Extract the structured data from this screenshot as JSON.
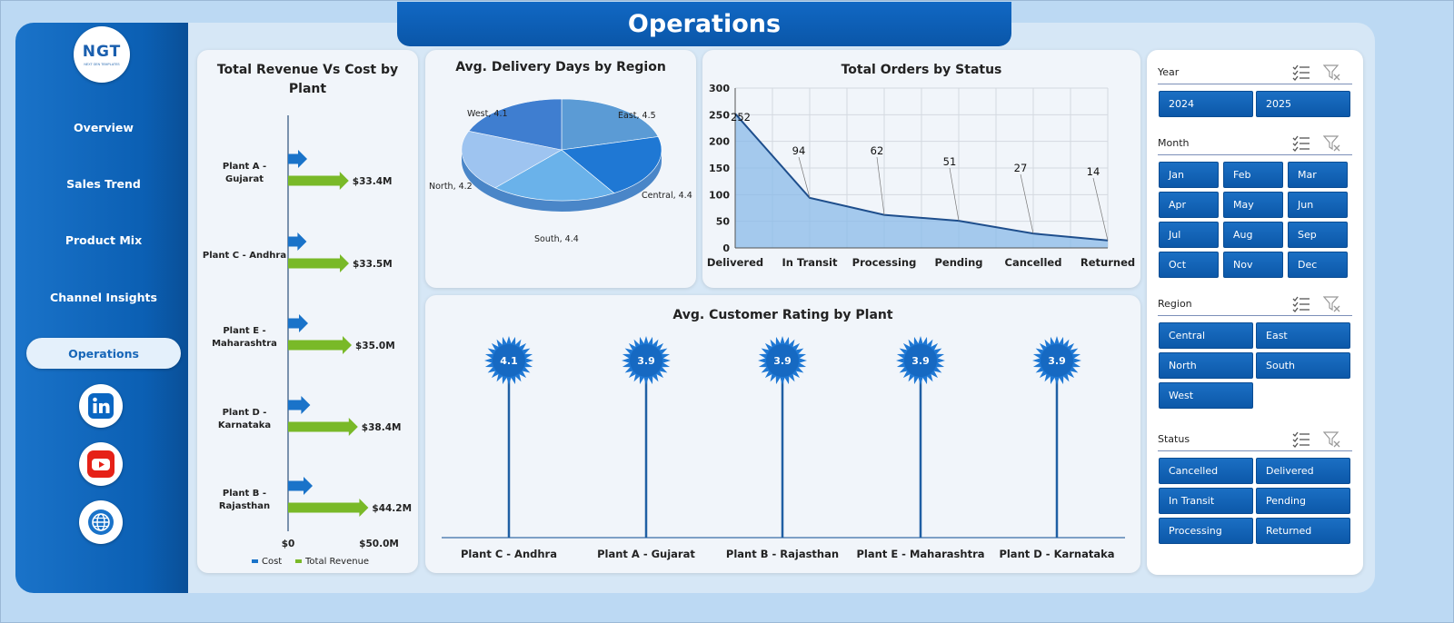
{
  "title": "Operations",
  "logo": {
    "text": "NGT",
    "subtext": "NEXT GEN TEMPLATES"
  },
  "nav": [
    {
      "label": "Overview",
      "active": false
    },
    {
      "label": "Sales Trend",
      "active": false
    },
    {
      "label": "Product Mix",
      "active": false
    },
    {
      "label": "Channel Insights",
      "active": false
    },
    {
      "label": "Operations",
      "active": true
    }
  ],
  "social": [
    {
      "icon": "linkedin-icon",
      "color": "#0a66c2"
    },
    {
      "icon": "youtube-icon",
      "color": "#e62117"
    },
    {
      "icon": "globe-icon",
      "color": "#1a73c9"
    }
  ],
  "chart_data": [
    {
      "type": "bar",
      "orientation": "horizontal",
      "title": "Total Revenue Vs Cost  by Plant",
      "categories": [
        "Plant A - Gujarat",
        "Plant C - Andhra",
        "Plant E - Maharashtra",
        "Plant D - Karnataka",
        "Plant B - Rajasthan"
      ],
      "series": [
        {
          "name": "Cost",
          "color": "#1a73c9",
          "values": [
            10.5,
            10.2,
            11.0,
            12.2,
            13.5
          ]
        },
        {
          "name": "Total Revenue",
          "color": "#79b928",
          "values": [
            33.4,
            33.5,
            35.0,
            38.4,
            44.2
          ],
          "labels": [
            "$33.4M",
            "$33.5M",
            "$35.0M",
            "$38.4M",
            "$44.2M"
          ]
        }
      ],
      "xlim": [
        0,
        50
      ],
      "xticks": [
        "$0",
        "$50.0M"
      ],
      "legend": "bottom"
    },
    {
      "type": "pie",
      "title": "Avg. Delivery Days by Region",
      "slices": [
        {
          "label": "East",
          "value": 4.5,
          "text": "East, 4.5",
          "color": "#5b9bd5"
        },
        {
          "label": "Central",
          "value": 4.4,
          "text": "Central, 4.4",
          "color": "#1f78d4"
        },
        {
          "label": "South",
          "value": 4.4,
          "text": "South, 4.4",
          "color": "#6ab2ea"
        },
        {
          "label": "North",
          "value": 4.2,
          "text": "North, 4.2",
          "color": "#9ec4f0"
        },
        {
          "label": "West",
          "value": 4.1,
          "text": "West, 4.1",
          "color": "#3f7ed0"
        }
      ]
    },
    {
      "type": "area",
      "title": "Total Orders by Status",
      "categories": [
        "Delivered",
        "In Transit",
        "Processing",
        "Pending",
        "Cancelled",
        "Returned"
      ],
      "values": [
        252,
        94,
        62,
        51,
        27,
        14
      ],
      "ylim": [
        0,
        300
      ],
      "yticks": [
        0,
        50,
        100,
        150,
        200,
        250,
        300
      ],
      "grid": true
    },
    {
      "type": "lollipop",
      "title": "Avg. Customer Rating by Plant",
      "categories": [
        "Plant C - Andhra",
        "Plant A - Gujarat",
        "Plant B - Rajasthan",
        "Plant E - Maharashtra",
        "Plant D - Karnataka"
      ],
      "values": [
        4.1,
        3.9,
        3.9,
        3.9,
        3.9
      ]
    }
  ],
  "slicers": [
    {
      "label": "Year",
      "items": [
        "2024",
        "2025"
      ]
    },
    {
      "label": "Month",
      "items": [
        "Jan",
        "Feb",
        "Mar",
        "Apr",
        "May",
        "Jun",
        "Jul",
        "Aug",
        "Sep",
        "Oct",
        "Nov",
        "Dec"
      ]
    },
    {
      "label": "Region",
      "items": [
        "Central",
        "East",
        "North",
        "South",
        "West"
      ]
    },
    {
      "label": "Status",
      "items": [
        "Cancelled",
        "Delivered",
        "In Transit",
        "Pending",
        "Processing",
        "Returned"
      ]
    }
  ]
}
